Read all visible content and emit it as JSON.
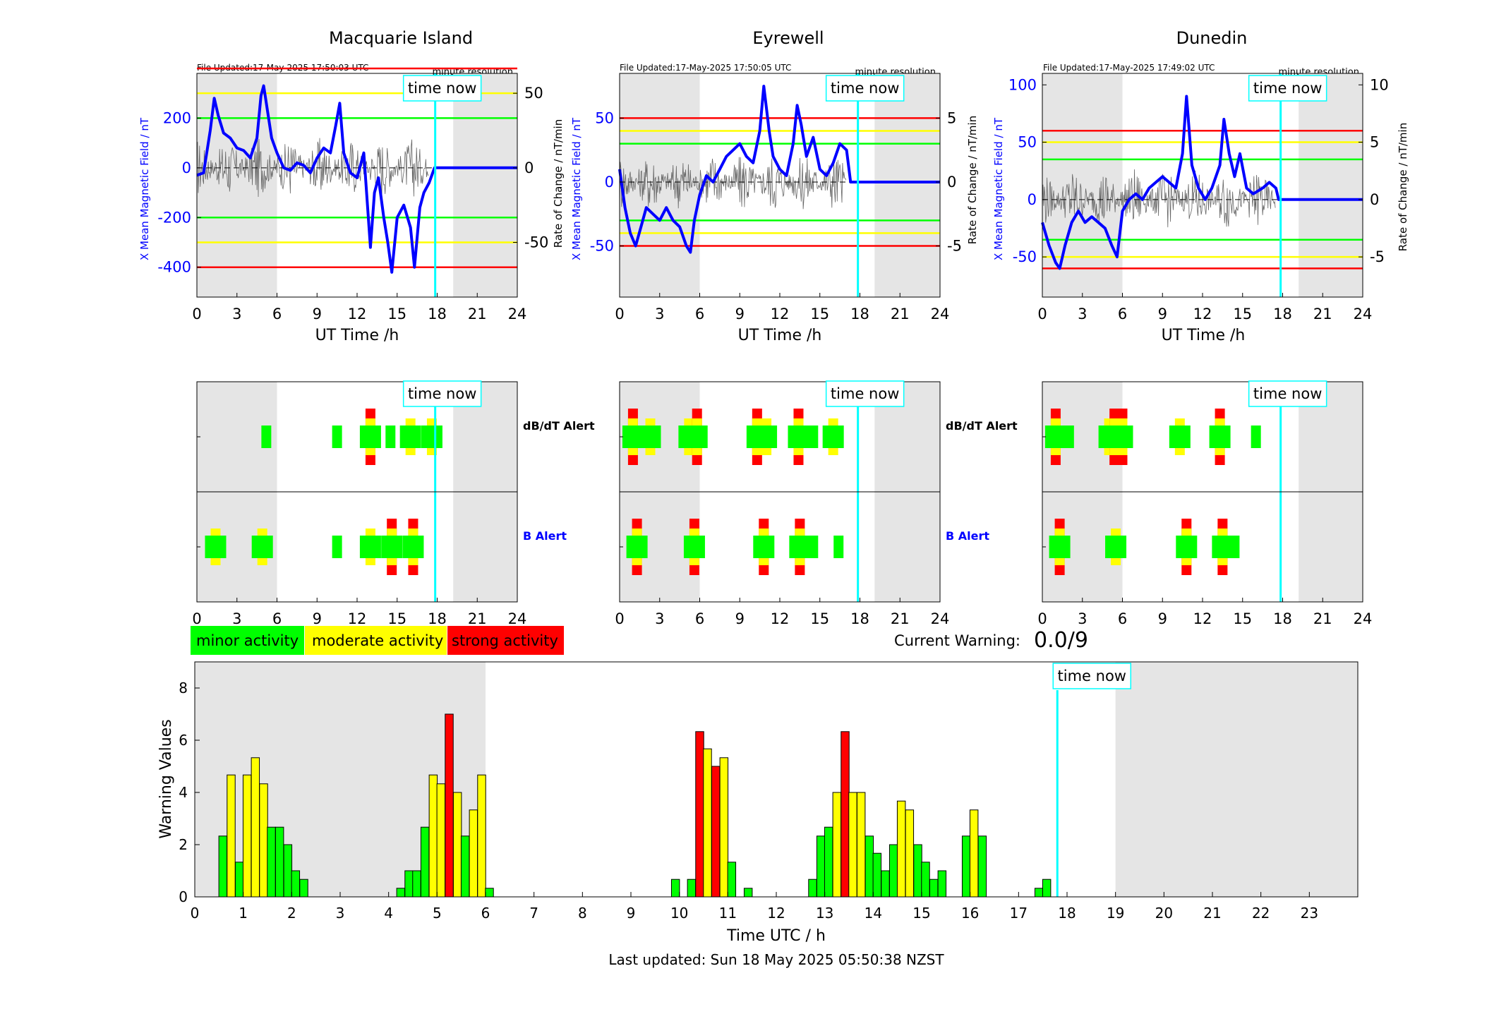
{
  "footer": {
    "last_updated": "Last updated: Sun 18 May 2025 05:50:38 NZST"
  },
  "colors": {
    "minor": "#00ff00",
    "moderate": "#ffff00",
    "strong": "#ff0000",
    "field": "#0000ff",
    "now_line": "#00ffff",
    "night": "#e5e5e5"
  },
  "common": {
    "time_now": "time now",
    "minute_res": "minute resolution",
    "x_label_top": "UT Time /h",
    "y_left": "X Mean Magnetic Field / nT",
    "y_right": "Rate of Change / nT/min",
    "dbdt_alert": "dB/dT Alert",
    "b_alert": "B Alert",
    "x_ticks": [
      0,
      3,
      6,
      9,
      12,
      15,
      18,
      21,
      24
    ]
  },
  "legend": {
    "minor": "minor activity",
    "moderate": "moderate activity",
    "strong": "strong activity"
  },
  "current_warning": {
    "label": "Current Warning:",
    "value": "0.0/9"
  },
  "stations": [
    {
      "name": "Macquarie Island",
      "file_updated": "File Updated:17-May-2025 17:50:03 UTC",
      "left_ylim": [
        -520,
        380
      ],
      "left_ticks": [
        -400,
        -200,
        0,
        200
      ],
      "right_ticks": [
        -50,
        0,
        50
      ],
      "rate_scale": 6,
      "levels": {
        "green": 200,
        "yellow": 300,
        "red": 400
      },
      "field_trace": [
        [
          0,
          -30
        ],
        [
          0.5,
          -20
        ],
        [
          1,
          150
        ],
        [
          1.3,
          280
        ],
        [
          1.6,
          210
        ],
        [
          2,
          140
        ],
        [
          2.5,
          120
        ],
        [
          3,
          80
        ],
        [
          3.5,
          70
        ],
        [
          4,
          40
        ],
        [
          4.5,
          120
        ],
        [
          4.8,
          290
        ],
        [
          5,
          330
        ],
        [
          5.2,
          260
        ],
        [
          5.6,
          120
        ],
        [
          6,
          60
        ],
        [
          6.5,
          0
        ],
        [
          7,
          -10
        ],
        [
          7.5,
          20
        ],
        [
          8,
          10
        ],
        [
          8.5,
          -20
        ],
        [
          9,
          40
        ],
        [
          9.5,
          80
        ],
        [
          10,
          60
        ],
        [
          10.4,
          170
        ],
        [
          10.7,
          260
        ],
        [
          11,
          60
        ],
        [
          11.5,
          -20
        ],
        [
          12,
          -40
        ],
        [
          12.5,
          60
        ],
        [
          13,
          -320
        ],
        [
          13.3,
          -100
        ],
        [
          13.6,
          -40
        ],
        [
          14,
          -200
        ],
        [
          14.3,
          -300
        ],
        [
          14.6,
          -420
        ],
        [
          15,
          -200
        ],
        [
          15.5,
          -150
        ],
        [
          16,
          -240
        ],
        [
          16.3,
          -400
        ],
        [
          16.7,
          -160
        ],
        [
          17,
          -100
        ],
        [
          17.4,
          -60
        ],
        [
          17.8,
          0
        ],
        [
          18,
          0
        ],
        [
          24,
          0
        ]
      ],
      "night": [
        [
          0,
          6
        ],
        [
          19.2,
          24
        ]
      ],
      "now_hour": 17.85,
      "dbdt_alerts": [
        [
          5.2,
          "g"
        ],
        [
          10.5,
          "g"
        ],
        [
          13,
          "r"
        ],
        [
          14.5,
          "g"
        ],
        [
          16,
          "y"
        ],
        [
          17.6,
          "y"
        ]
      ],
      "b_alerts": [
        [
          1.4,
          "y"
        ],
        [
          4.9,
          "y"
        ],
        [
          10.5,
          "g"
        ],
        [
          13,
          "y"
        ],
        [
          14.6,
          "r"
        ],
        [
          16.2,
          "r"
        ]
      ]
    },
    {
      "name": "Eyrewell",
      "file_updated": "File Updated:17-May-2025 17:50:05 UTC",
      "left_ylim": [
        -90,
        85
      ],
      "left_ticks": [
        -50,
        0,
        50
      ],
      "right_ticks": [
        -5,
        0,
        5
      ],
      "rate_scale": 10,
      "levels": {
        "green": 30,
        "yellow": 40,
        "red": 50
      },
      "field_trace": [
        [
          0,
          10
        ],
        [
          0.4,
          -20
        ],
        [
          0.8,
          -40
        ],
        [
          1.2,
          -50
        ],
        [
          1.6,
          -35
        ],
        [
          2,
          -20
        ],
        [
          2.5,
          -25
        ],
        [
          3,
          -30
        ],
        [
          3.5,
          -20
        ],
        [
          4,
          -30
        ],
        [
          4.5,
          -35
        ],
        [
          5,
          -50
        ],
        [
          5.3,
          -55
        ],
        [
          5.6,
          -30
        ],
        [
          6,
          -10
        ],
        [
          6.5,
          5
        ],
        [
          7,
          0
        ],
        [
          7.5,
          10
        ],
        [
          8,
          20
        ],
        [
          8.5,
          25
        ],
        [
          9,
          30
        ],
        [
          9.5,
          20
        ],
        [
          10,
          15
        ],
        [
          10.5,
          40
        ],
        [
          10.8,
          75
        ],
        [
          11.2,
          40
        ],
        [
          11.5,
          20
        ],
        [
          12,
          10
        ],
        [
          12.5,
          5
        ],
        [
          13,
          30
        ],
        [
          13.3,
          60
        ],
        [
          13.6,
          45
        ],
        [
          14,
          20
        ],
        [
          14.5,
          35
        ],
        [
          15,
          10
        ],
        [
          15.5,
          5
        ],
        [
          16,
          15
        ],
        [
          16.5,
          30
        ],
        [
          17,
          25
        ],
        [
          17.3,
          0
        ],
        [
          24,
          0
        ]
      ],
      "night": [
        [
          0,
          6
        ],
        [
          19.1,
          24
        ]
      ],
      "now_hour": 17.85,
      "dbdt_alerts": [
        [
          1,
          "r"
        ],
        [
          2.3,
          "y"
        ],
        [
          5.2,
          "y"
        ],
        [
          5.8,
          "r"
        ],
        [
          10.3,
          "r"
        ],
        [
          11,
          "y"
        ],
        [
          13.4,
          "r"
        ],
        [
          14.5,
          "g"
        ],
        [
          16,
          "y"
        ]
      ],
      "b_alerts": [
        [
          1.3,
          "r"
        ],
        [
          5.6,
          "r"
        ],
        [
          10.8,
          "r"
        ],
        [
          13.5,
          "r"
        ],
        [
          14.5,
          "g"
        ],
        [
          16.4,
          "g"
        ]
      ]
    },
    {
      "name": "Dunedin",
      "file_updated": "File Updated:17-May-2025 17:49:02 UTC",
      "left_ylim": [
        -85,
        110
      ],
      "left_ticks": [
        -50,
        0,
        50,
        100
      ],
      "right_ticks": [
        -5,
        0,
        5,
        10
      ],
      "rate_scale": 10,
      "levels": {
        "green": 35,
        "yellow": 50,
        "red": 60
      },
      "field_trace": [
        [
          0,
          -20
        ],
        [
          0.5,
          -40
        ],
        [
          1,
          -55
        ],
        [
          1.3,
          -60
        ],
        [
          1.7,
          -40
        ],
        [
          2.2,
          -20
        ],
        [
          2.7,
          -10
        ],
        [
          3.2,
          -20
        ],
        [
          3.7,
          -15
        ],
        [
          4.2,
          -20
        ],
        [
          4.7,
          -25
        ],
        [
          5.2,
          -40
        ],
        [
          5.6,
          -50
        ],
        [
          6,
          -10
        ],
        [
          6.5,
          0
        ],
        [
          7,
          5
        ],
        [
          7.5,
          0
        ],
        [
          8,
          10
        ],
        [
          8.5,
          15
        ],
        [
          9,
          20
        ],
        [
          9.5,
          15
        ],
        [
          10,
          10
        ],
        [
          10.5,
          40
        ],
        [
          10.8,
          90
        ],
        [
          11.2,
          30
        ],
        [
          11.7,
          10
        ],
        [
          12.2,
          0
        ],
        [
          12.7,
          10
        ],
        [
          13.3,
          30
        ],
        [
          13.6,
          70
        ],
        [
          14,
          40
        ],
        [
          14.4,
          20
        ],
        [
          14.8,
          40
        ],
        [
          15.3,
          10
        ],
        [
          15.8,
          5
        ],
        [
          16.5,
          10
        ],
        [
          17,
          15
        ],
        [
          17.5,
          10
        ],
        [
          17.7,
          0
        ],
        [
          24,
          0
        ]
      ],
      "night": [
        [
          0,
          6
        ],
        [
          19.2,
          24
        ]
      ],
      "now_hour": 17.85,
      "dbdt_alerts": [
        [
          1,
          "r"
        ],
        [
          2,
          "g"
        ],
        [
          5,
          "y"
        ],
        [
          5.4,
          "r"
        ],
        [
          6,
          "r"
        ],
        [
          10.3,
          "y"
        ],
        [
          13.3,
          "r"
        ],
        [
          16,
          "g"
        ]
      ],
      "b_alerts": [
        [
          1.3,
          "r"
        ],
        [
          5.5,
          "y"
        ],
        [
          10.8,
          "r"
        ],
        [
          13.5,
          "r"
        ],
        [
          14.4,
          "g"
        ]
      ]
    }
  ],
  "chart_data": {
    "type": "bar",
    "xlabel": "Time UTC / h",
    "ylabel": "Warning Values",
    "xlim": [
      0,
      24
    ],
    "ylim": [
      0,
      9
    ],
    "x_ticks": [
      0,
      1,
      2,
      3,
      4,
      5,
      6,
      7,
      8,
      9,
      10,
      11,
      12,
      13,
      14,
      15,
      16,
      17,
      18,
      19,
      20,
      21,
      22,
      23
    ],
    "y_ticks": [
      0,
      2,
      4,
      6,
      8
    ],
    "night": [
      [
        0,
        6
      ],
      [
        19,
        24
      ]
    ],
    "now_hour": 17.8,
    "bar_width_h": 0.1667,
    "bars": [
      {
        "x": 0.58,
        "v": 2.33,
        "c": "g"
      },
      {
        "x": 0.75,
        "v": 4.67,
        "c": "y"
      },
      {
        "x": 0.92,
        "v": 1.33,
        "c": "g"
      },
      {
        "x": 1.08,
        "v": 4.67,
        "c": "y"
      },
      {
        "x": 1.25,
        "v": 5.33,
        "c": "y"
      },
      {
        "x": 1.42,
        "v": 4.33,
        "c": "y"
      },
      {
        "x": 1.58,
        "v": 2.67,
        "c": "g"
      },
      {
        "x": 1.75,
        "v": 2.67,
        "c": "g"
      },
      {
        "x": 1.92,
        "v": 2.0,
        "c": "g"
      },
      {
        "x": 2.08,
        "v": 1.0,
        "c": "g"
      },
      {
        "x": 2.25,
        "v": 0.67,
        "c": "g"
      },
      {
        "x": 4.25,
        "v": 0.33,
        "c": "g"
      },
      {
        "x": 4.42,
        "v": 1.0,
        "c": "g"
      },
      {
        "x": 4.58,
        "v": 1.0,
        "c": "g"
      },
      {
        "x": 4.75,
        "v": 2.67,
        "c": "g"
      },
      {
        "x": 4.92,
        "v": 4.67,
        "c": "y"
      },
      {
        "x": 5.08,
        "v": 4.33,
        "c": "y"
      },
      {
        "x": 5.25,
        "v": 7.0,
        "c": "r"
      },
      {
        "x": 5.42,
        "v": 4.0,
        "c": "y"
      },
      {
        "x": 5.58,
        "v": 2.33,
        "c": "g"
      },
      {
        "x": 5.75,
        "v": 3.33,
        "c": "y"
      },
      {
        "x": 5.92,
        "v": 4.67,
        "c": "y"
      },
      {
        "x": 6.08,
        "v": 0.33,
        "c": "g"
      },
      {
        "x": 9.92,
        "v": 0.67,
        "c": "g"
      },
      {
        "x": 10.25,
        "v": 0.67,
        "c": "g"
      },
      {
        "x": 10.42,
        "v": 6.33,
        "c": "r"
      },
      {
        "x": 10.58,
        "v": 5.67,
        "c": "y"
      },
      {
        "x": 10.75,
        "v": 5.0,
        "c": "r"
      },
      {
        "x": 10.92,
        "v": 5.33,
        "c": "y"
      },
      {
        "x": 11.08,
        "v": 1.33,
        "c": "g"
      },
      {
        "x": 11.42,
        "v": 0.33,
        "c": "g"
      },
      {
        "x": 12.75,
        "v": 0.67,
        "c": "g"
      },
      {
        "x": 12.92,
        "v": 2.33,
        "c": "g"
      },
      {
        "x": 13.08,
        "v": 2.67,
        "c": "g"
      },
      {
        "x": 13.25,
        "v": 4.0,
        "c": "y"
      },
      {
        "x": 13.42,
        "v": 6.33,
        "c": "r"
      },
      {
        "x": 13.58,
        "v": 4.0,
        "c": "y"
      },
      {
        "x": 13.75,
        "v": 4.0,
        "c": "y"
      },
      {
        "x": 13.92,
        "v": 2.33,
        "c": "g"
      },
      {
        "x": 14.08,
        "v": 1.67,
        "c": "g"
      },
      {
        "x": 14.25,
        "v": 1.0,
        "c": "g"
      },
      {
        "x": 14.42,
        "v": 2.0,
        "c": "g"
      },
      {
        "x": 14.58,
        "v": 3.67,
        "c": "y"
      },
      {
        "x": 14.75,
        "v": 3.33,
        "c": "y"
      },
      {
        "x": 14.92,
        "v": 2.0,
        "c": "g"
      },
      {
        "x": 15.08,
        "v": 1.33,
        "c": "g"
      },
      {
        "x": 15.25,
        "v": 0.67,
        "c": "g"
      },
      {
        "x": 15.42,
        "v": 1.0,
        "c": "g"
      },
      {
        "x": 15.92,
        "v": 2.33,
        "c": "g"
      },
      {
        "x": 16.08,
        "v": 3.33,
        "c": "y"
      },
      {
        "x": 16.25,
        "v": 2.33,
        "c": "g"
      },
      {
        "x": 17.42,
        "v": 0.33,
        "c": "g"
      },
      {
        "x": 17.58,
        "v": 0.67,
        "c": "g"
      }
    ]
  }
}
